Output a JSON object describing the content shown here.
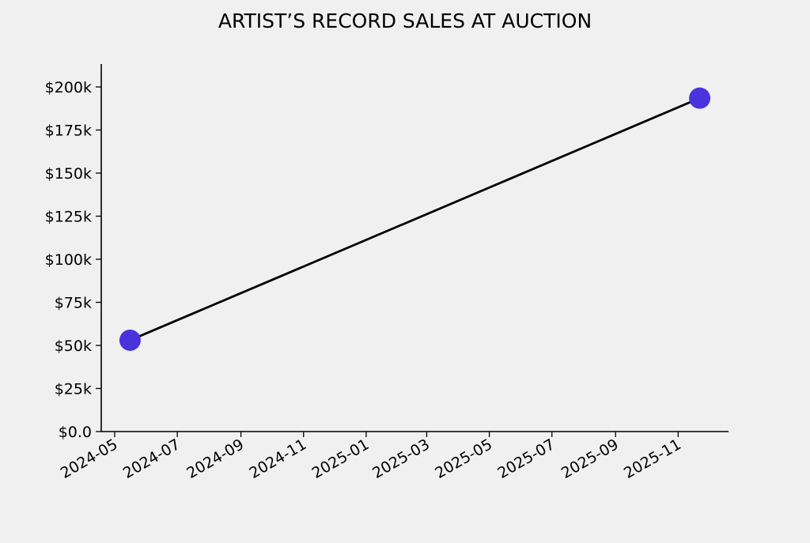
{
  "chart_data": {
    "type": "line",
    "title": "ARTIST’S RECORD SALES AT AUCTION",
    "xlabel": "",
    "ylabel": "",
    "x_ticks": [
      "2024-05",
      "2024-07",
      "2024-09",
      "2024-11",
      "2025-01",
      "2025-03",
      "2025-05",
      "2025-07",
      "2025-09",
      "2025-11"
    ],
    "y_ticks": [
      "$0.0",
      "$25k",
      "$50k",
      "$75k",
      "$100k",
      "$125k",
      "$150k",
      "$175k",
      "$200k"
    ],
    "ylim": [
      0,
      213000
    ],
    "grid": false,
    "series": [
      {
        "x": [
          "2024-05-16",
          "2025-11-22"
        ],
        "values": [
          53000,
          193500
        ],
        "line_color": "#000000",
        "marker_color": "#4a33dd"
      }
    ]
  }
}
